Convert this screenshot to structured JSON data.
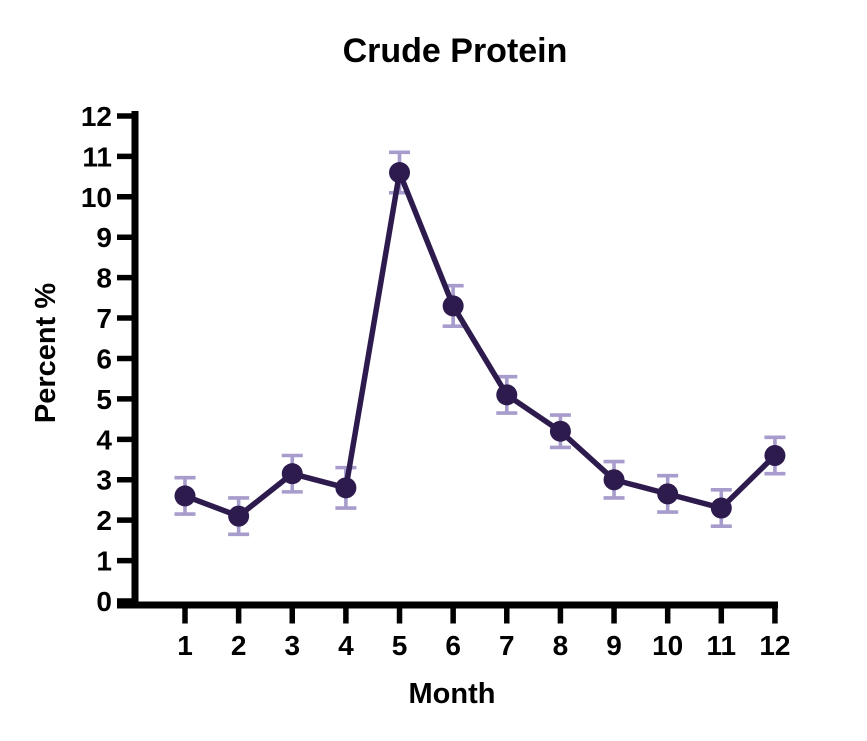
{
  "chart_data": {
    "type": "line",
    "title": "Crude Protein",
    "xlabel": "Month",
    "ylabel": "Percent %",
    "categories": [
      1,
      2,
      3,
      4,
      5,
      6,
      7,
      8,
      9,
      10,
      11,
      12
    ],
    "series": [
      {
        "name": "Crude Protein",
        "values": [
          2.6,
          2.1,
          3.15,
          2.8,
          10.6,
          7.3,
          5.1,
          4.2,
          3.0,
          2.65,
          2.3,
          3.6
        ],
        "errors": [
          0.45,
          0.45,
          0.45,
          0.5,
          0.5,
          0.5,
          0.45,
          0.4,
          0.45,
          0.45,
          0.45,
          0.45
        ]
      }
    ],
    "ylim": [
      0,
      12
    ],
    "yticks": [
      0,
      1,
      2,
      3,
      4,
      5,
      6,
      7,
      8,
      9,
      10,
      11,
      12
    ],
    "grid": false,
    "legend_position": "none",
    "marker_style": "circle",
    "colors": {
      "line": "#2d1b4e",
      "marker": "#2d1b4e",
      "error_bar": "#a79ccc",
      "axis": "#000000",
      "text": "#000000",
      "background": "#ffffff"
    }
  }
}
